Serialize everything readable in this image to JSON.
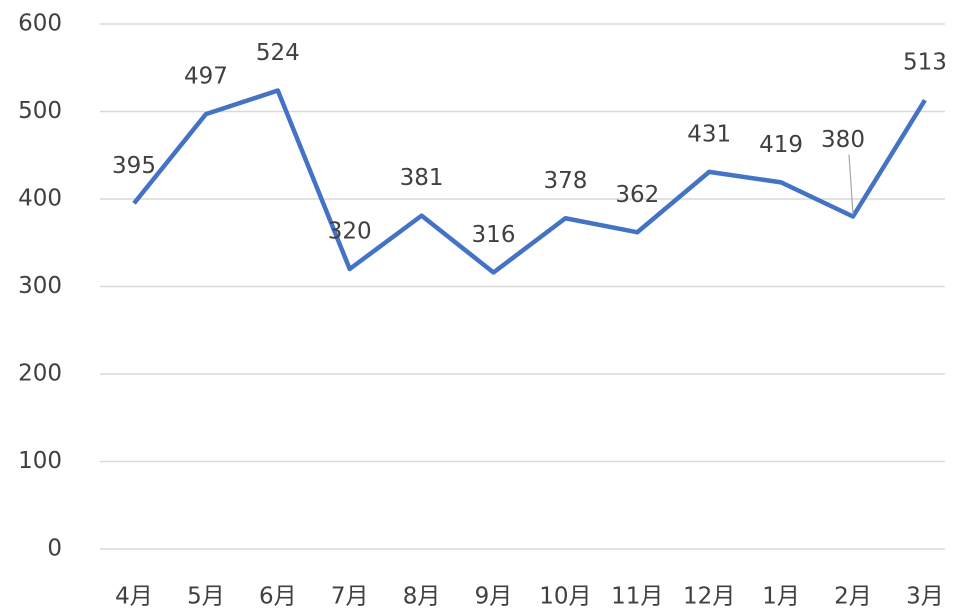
{
  "chart_data": {
    "type": "line",
    "categories": [
      "4月",
      "5月",
      "6月",
      "7月",
      "8月",
      "9月",
      "10月",
      "11月",
      "12月",
      "1月",
      "2月",
      "3月"
    ],
    "series": [
      {
        "name": "",
        "color": "#4472c4",
        "values": [
          395,
          497,
          524,
          320,
          381,
          316,
          378,
          362,
          431,
          419,
          380,
          513
        ]
      }
    ],
    "ylim": [
      0,
      600
    ],
    "yticks": [
      0,
      100,
      200,
      300,
      400,
      500,
      600
    ],
    "grid": true
  }
}
